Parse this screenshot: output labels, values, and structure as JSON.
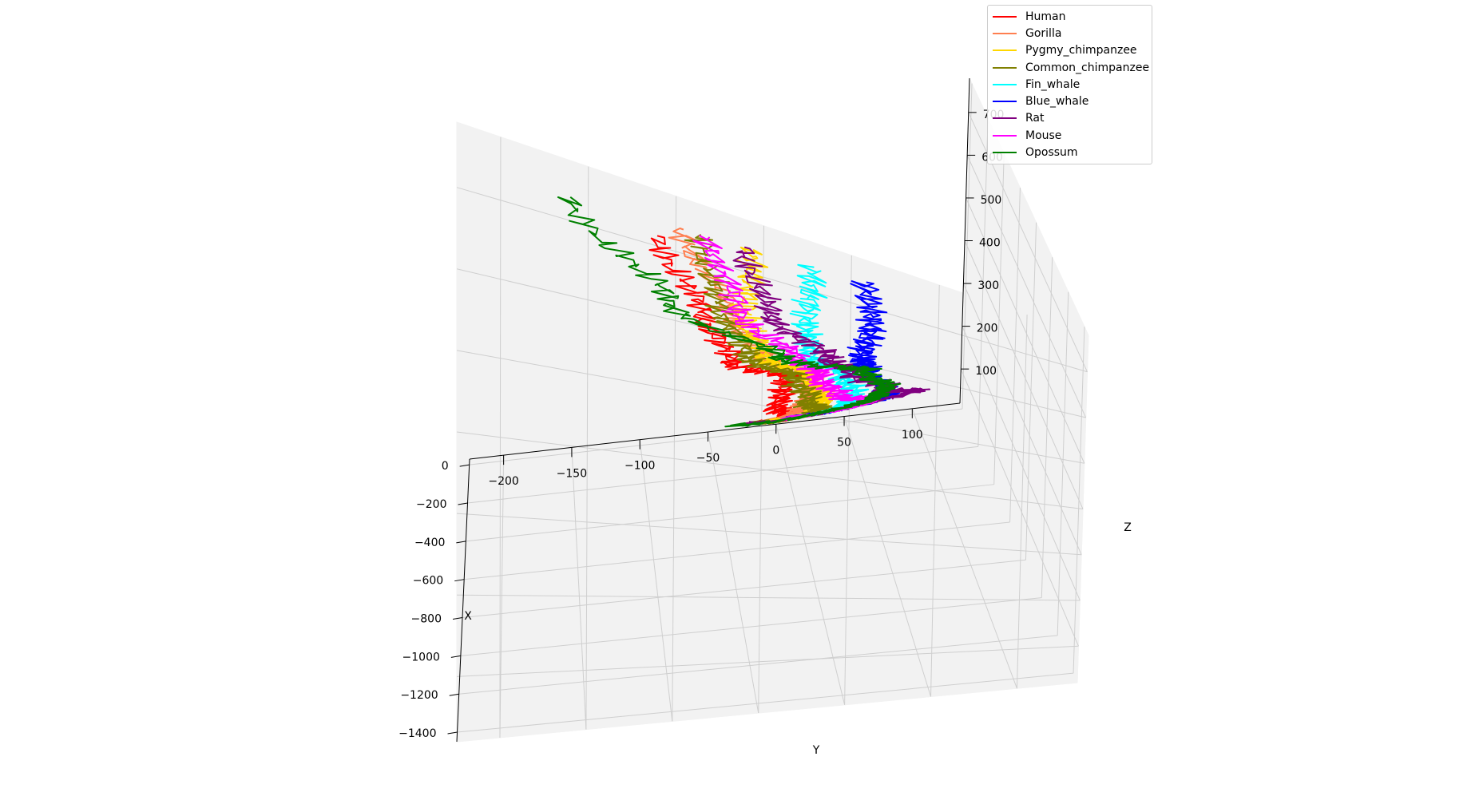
{
  "chart_data": {
    "type": "line",
    "projection": "3d",
    "xlabel": "X",
    "ylabel": "Y",
    "zlabel": "Z",
    "xlim": [
      -1450,
      30
    ],
    "ylim": [
      -225,
      135
    ],
    "zlim": [
      20,
      780
    ],
    "x_ticks": [
      -1400,
      -1200,
      -1000,
      -800,
      -600,
      -400,
      -200,
      0
    ],
    "x_tick_labels": [
      "−1400",
      "−1200",
      "−1000",
      "−800",
      "−600",
      "−400",
      "−200",
      "0"
    ],
    "y_ticks": [
      -200,
      -150,
      -100,
      -50,
      0,
      50,
      100
    ],
    "y_tick_labels": [
      "−200",
      "−150",
      "−100",
      "−50",
      "0",
      "50",
      "100"
    ],
    "z_ticks": [
      100,
      200,
      300,
      400,
      500,
      600,
      700
    ],
    "z_tick_labels": [
      "100",
      "200",
      "300",
      "400",
      "500",
      "600",
      "700"
    ],
    "grid": true,
    "legend_position": "top-right",
    "series": [
      {
        "name": "Human",
        "color": "#ff0000",
        "x": [
          0,
          -200,
          -400,
          -600,
          -800,
          -1000,
          -1200,
          -1400
        ],
        "y": [
          -15,
          10,
          -5,
          -20,
          -20,
          -60,
          -80,
          -110
        ],
        "z": [
          60,
          170,
          270,
          370,
          480,
          540,
          630,
          720
        ]
      },
      {
        "name": "Gorilla",
        "color": "#ff7f50",
        "x": [
          0,
          -200,
          -400,
          -600,
          -800,
          -1000,
          -1200,
          -1400
        ],
        "y": [
          -10,
          20,
          -5,
          0,
          -5,
          -40,
          -65,
          -95
        ],
        "z": [
          60,
          170,
          270,
          370,
          480,
          550,
          640,
          740
        ]
      },
      {
        "name": "Pygmy_chimpanzee",
        "color": "#ffd700",
        "x": [
          0,
          -200,
          -400,
          -600,
          -800,
          -1000,
          -1200,
          -1400
        ],
        "y": [
          -5,
          10,
          10,
          10,
          -5,
          -40,
          -55,
          -55
        ],
        "z": [
          60,
          170,
          270,
          370,
          480,
          550,
          640,
          740
        ]
      },
      {
        "name": "Common_chimpanzee",
        "color": "#808000",
        "x": [
          0,
          -200,
          -400,
          -600,
          -800,
          -1000,
          -1200,
          -1400
        ],
        "y": [
          -15,
          0,
          15,
          0,
          -15,
          -50,
          -70,
          -85
        ],
        "z": [
          60,
          170,
          270,
          370,
          480,
          550,
          640,
          740
        ]
      },
      {
        "name": "Fin_whale",
        "color": "#00ffff",
        "x": [
          0,
          -200,
          -400,
          -600,
          -800,
          -1000,
          -1200,
          -1400
        ],
        "y": [
          10,
          30,
          30,
          30,
          15,
          -10,
          -20,
          -20
        ],
        "z": [
          60,
          170,
          270,
          370,
          480,
          550,
          640,
          740
        ]
      },
      {
        "name": "Blue_whale",
        "color": "#0000ff",
        "x": [
          0,
          -200,
          -400,
          -600,
          -800,
          -1000,
          -1200,
          -1400
        ],
        "y": [
          15,
          40,
          60,
          50,
          30,
          20,
          20,
          10
        ],
        "z": [
          60,
          170,
          270,
          370,
          480,
          550,
          640,
          740
        ]
      },
      {
        "name": "Rat",
        "color": "#800080",
        "x": [
          0,
          -200,
          -400,
          -600,
          -800,
          -1000,
          -1200,
          -1400
        ],
        "y": [
          -20,
          40,
          80,
          50,
          20,
          0,
          -40,
          -60
        ],
        "z": [
          60,
          170,
          270,
          370,
          480,
          550,
          640,
          740
        ]
      },
      {
        "name": "Mouse",
        "color": "#ff00ff",
        "x": [
          0,
          -200,
          -400,
          -600,
          -800,
          -1000,
          -1200,
          -1400
        ],
        "y": [
          10,
          45,
          50,
          20,
          0,
          -20,
          -60,
          -80
        ],
        "z": [
          60,
          170,
          270,
          370,
          480,
          550,
          640,
          740
        ]
      },
      {
        "name": "Opossum",
        "color": "#008000",
        "x": [
          0,
          -200,
          -400,
          -600,
          -800,
          -1000,
          -1200,
          -1400
        ],
        "y": [
          -30,
          20,
          50,
          50,
          30,
          -30,
          -100,
          -160
        ],
        "z": [
          60,
          170,
          270,
          370,
          480,
          550,
          640,
          740
        ]
      }
    ]
  }
}
